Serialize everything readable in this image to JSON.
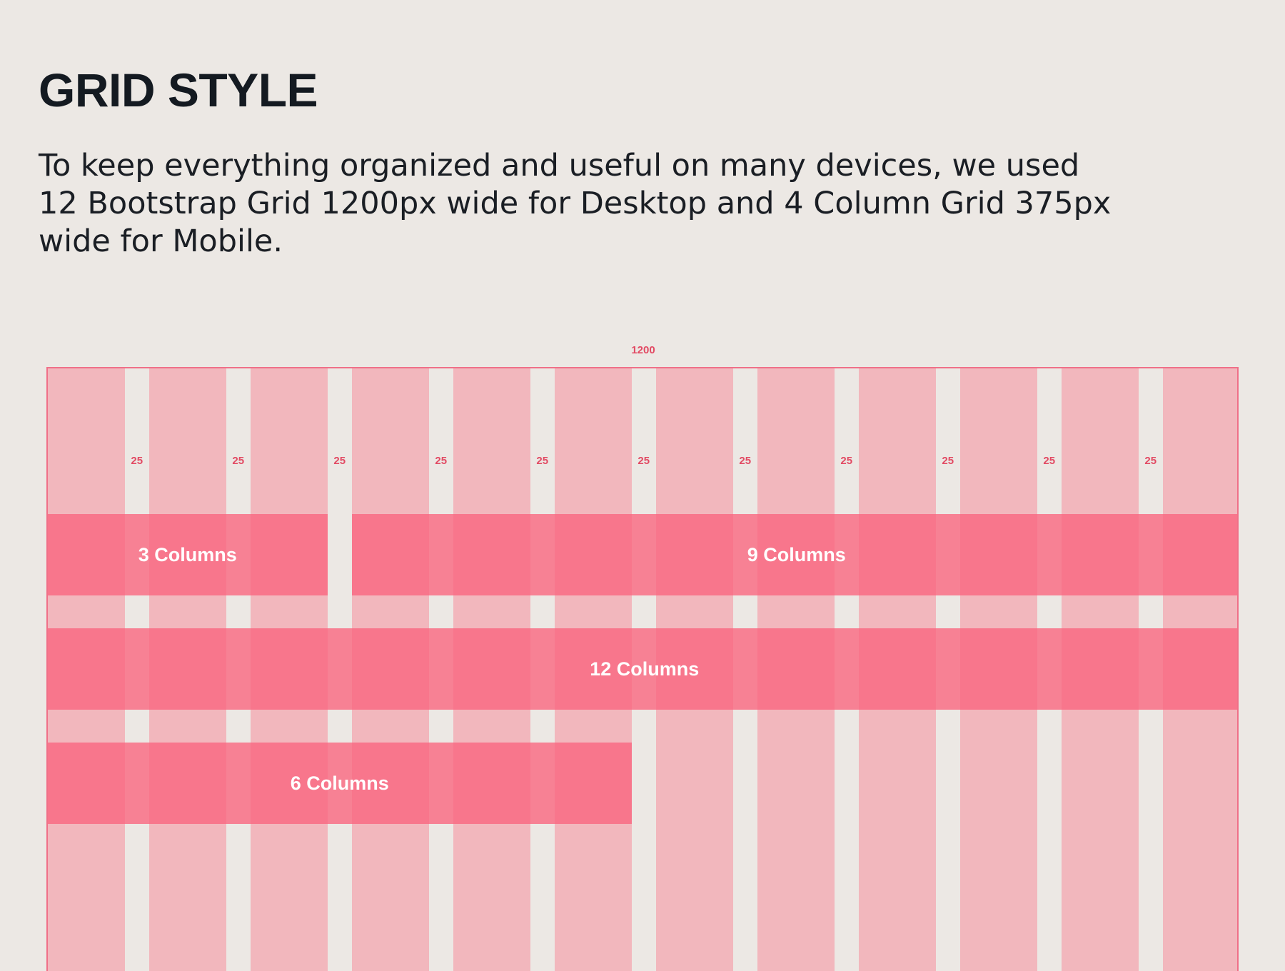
{
  "heading": "GRID STYLE",
  "description": {
    "line1": "To keep everything organized and useful on many devices, we used",
    "line2": "12 Bootstrap Grid 1200px wide for Desktop and 4 Column Grid 375px",
    "line3": "wide for Mobile."
  },
  "grid": {
    "total_width_label": "1200",
    "columns": 12,
    "gutter_label": "25",
    "spans": [
      {
        "label": "3 Columns",
        "start": 1,
        "span": 3
      },
      {
        "label": "9 Columns",
        "start": 4,
        "span": 9
      },
      {
        "label": "12 Columns",
        "start": 1,
        "span": 12
      },
      {
        "label": "6 Columns",
        "start": 1,
        "span": 6
      }
    ]
  },
  "colors": {
    "background": "#ece8e4",
    "column": "#f2b7bd",
    "span_bar": "#fa647d",
    "accent": "#e24a63",
    "heading_text": "#141a21"
  }
}
